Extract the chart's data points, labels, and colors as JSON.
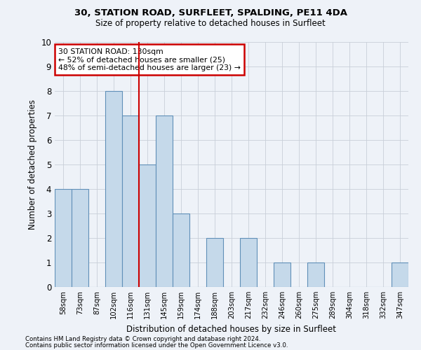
{
  "title1": "30, STATION ROAD, SURFLEET, SPALDING, PE11 4DA",
  "title2": "Size of property relative to detached houses in Surfleet",
  "xlabel": "Distribution of detached houses by size in Surfleet",
  "ylabel": "Number of detached properties",
  "categories": [
    "58sqm",
    "73sqm",
    "87sqm",
    "102sqm",
    "116sqm",
    "131sqm",
    "145sqm",
    "159sqm",
    "174sqm",
    "188sqm",
    "203sqm",
    "217sqm",
    "232sqm",
    "246sqm",
    "260sqm",
    "275sqm",
    "289sqm",
    "304sqm",
    "318sqm",
    "332sqm",
    "347sqm"
  ],
  "values": [
    4,
    4,
    0,
    8,
    7,
    5,
    7,
    3,
    0,
    2,
    0,
    2,
    0,
    1,
    0,
    1,
    0,
    0,
    0,
    0,
    1
  ],
  "highlight_index": 4,
  "bar_color": "#c5d9ea",
  "bar_edge_color": "#6090b8",
  "highlight_line_color": "#cc0000",
  "annotation_text": "30 STATION ROAD: 130sqm\n← 52% of detached houses are smaller (25)\n48% of semi-detached houses are larger (23) →",
  "annotation_box_color": "#ffffff",
  "annotation_border_color": "#cc0000",
  "footnote1": "Contains HM Land Registry data © Crown copyright and database right 2024.",
  "footnote2": "Contains public sector information licensed under the Open Government Licence v3.0.",
  "bg_color": "#eef2f8",
  "grid_color": "#c8cfd8",
  "ylim": [
    0,
    10
  ],
  "yticks": [
    0,
    1,
    2,
    3,
    4,
    5,
    6,
    7,
    8,
    9,
    10
  ]
}
